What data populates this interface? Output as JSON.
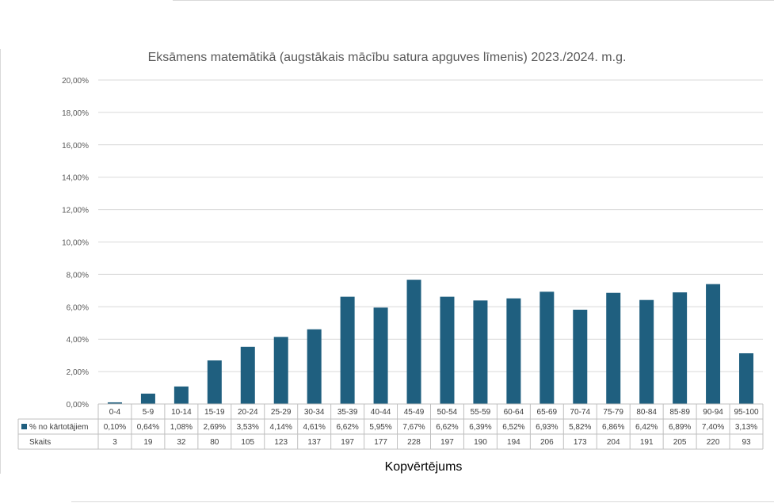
{
  "chart_data": {
    "type": "bar",
    "title": "Eksāmens matemātikā (augstākais mācību satura apguves līmenis) 2023./2024. m.g.",
    "xlabel": "Kopvērtējums",
    "ylabel": "",
    "ylim": [
      0,
      20
    ],
    "y_tick_labels": [
      "0,00%",
      "2,00%",
      "4,00%",
      "6,00%",
      "8,00%",
      "10,00%",
      "12,00%",
      "14,00%",
      "16,00%",
      "18,00%",
      "20,00%"
    ],
    "grid": true,
    "legend_position": "data-table",
    "color": "#1F5F7F",
    "categories": [
      "0-4",
      "5-9",
      "10-14",
      "15-19",
      "20-24",
      "25-29",
      "30-34",
      "35-39",
      "40-44",
      "45-49",
      "50-54",
      "55-59",
      "60-64",
      "65-69",
      "70-74",
      "75-79",
      "80-84",
      "85-89",
      "90-94",
      "95-100"
    ],
    "series": [
      {
        "name": "% no kārtotājiem",
        "values": [
          0.1,
          0.64,
          1.08,
          2.69,
          3.53,
          4.14,
          4.61,
          6.62,
          5.95,
          7.67,
          6.62,
          6.39,
          6.52,
          6.93,
          5.82,
          6.86,
          6.42,
          6.89,
          7.4,
          3.13
        ],
        "labels": [
          "0,10%",
          "0,64%",
          "1,08%",
          "2,69%",
          "3,53%",
          "4,14%",
          "4,61%",
          "6,62%",
          "5,95%",
          "7,67%",
          "6,62%",
          "6,39%",
          "6,52%",
          "6,93%",
          "5,82%",
          "6,86%",
          "6,42%",
          "6,89%",
          "7,40%",
          "3,13%"
        ]
      }
    ],
    "table_rows": [
      {
        "name": "Skaits",
        "values": [
          "3",
          "19",
          "32",
          "80",
          "105",
          "123",
          "137",
          "197",
          "177",
          "228",
          "197",
          "190",
          "194",
          "206",
          "173",
          "204",
          "191",
          "205",
          "220",
          "93"
        ]
      }
    ]
  }
}
